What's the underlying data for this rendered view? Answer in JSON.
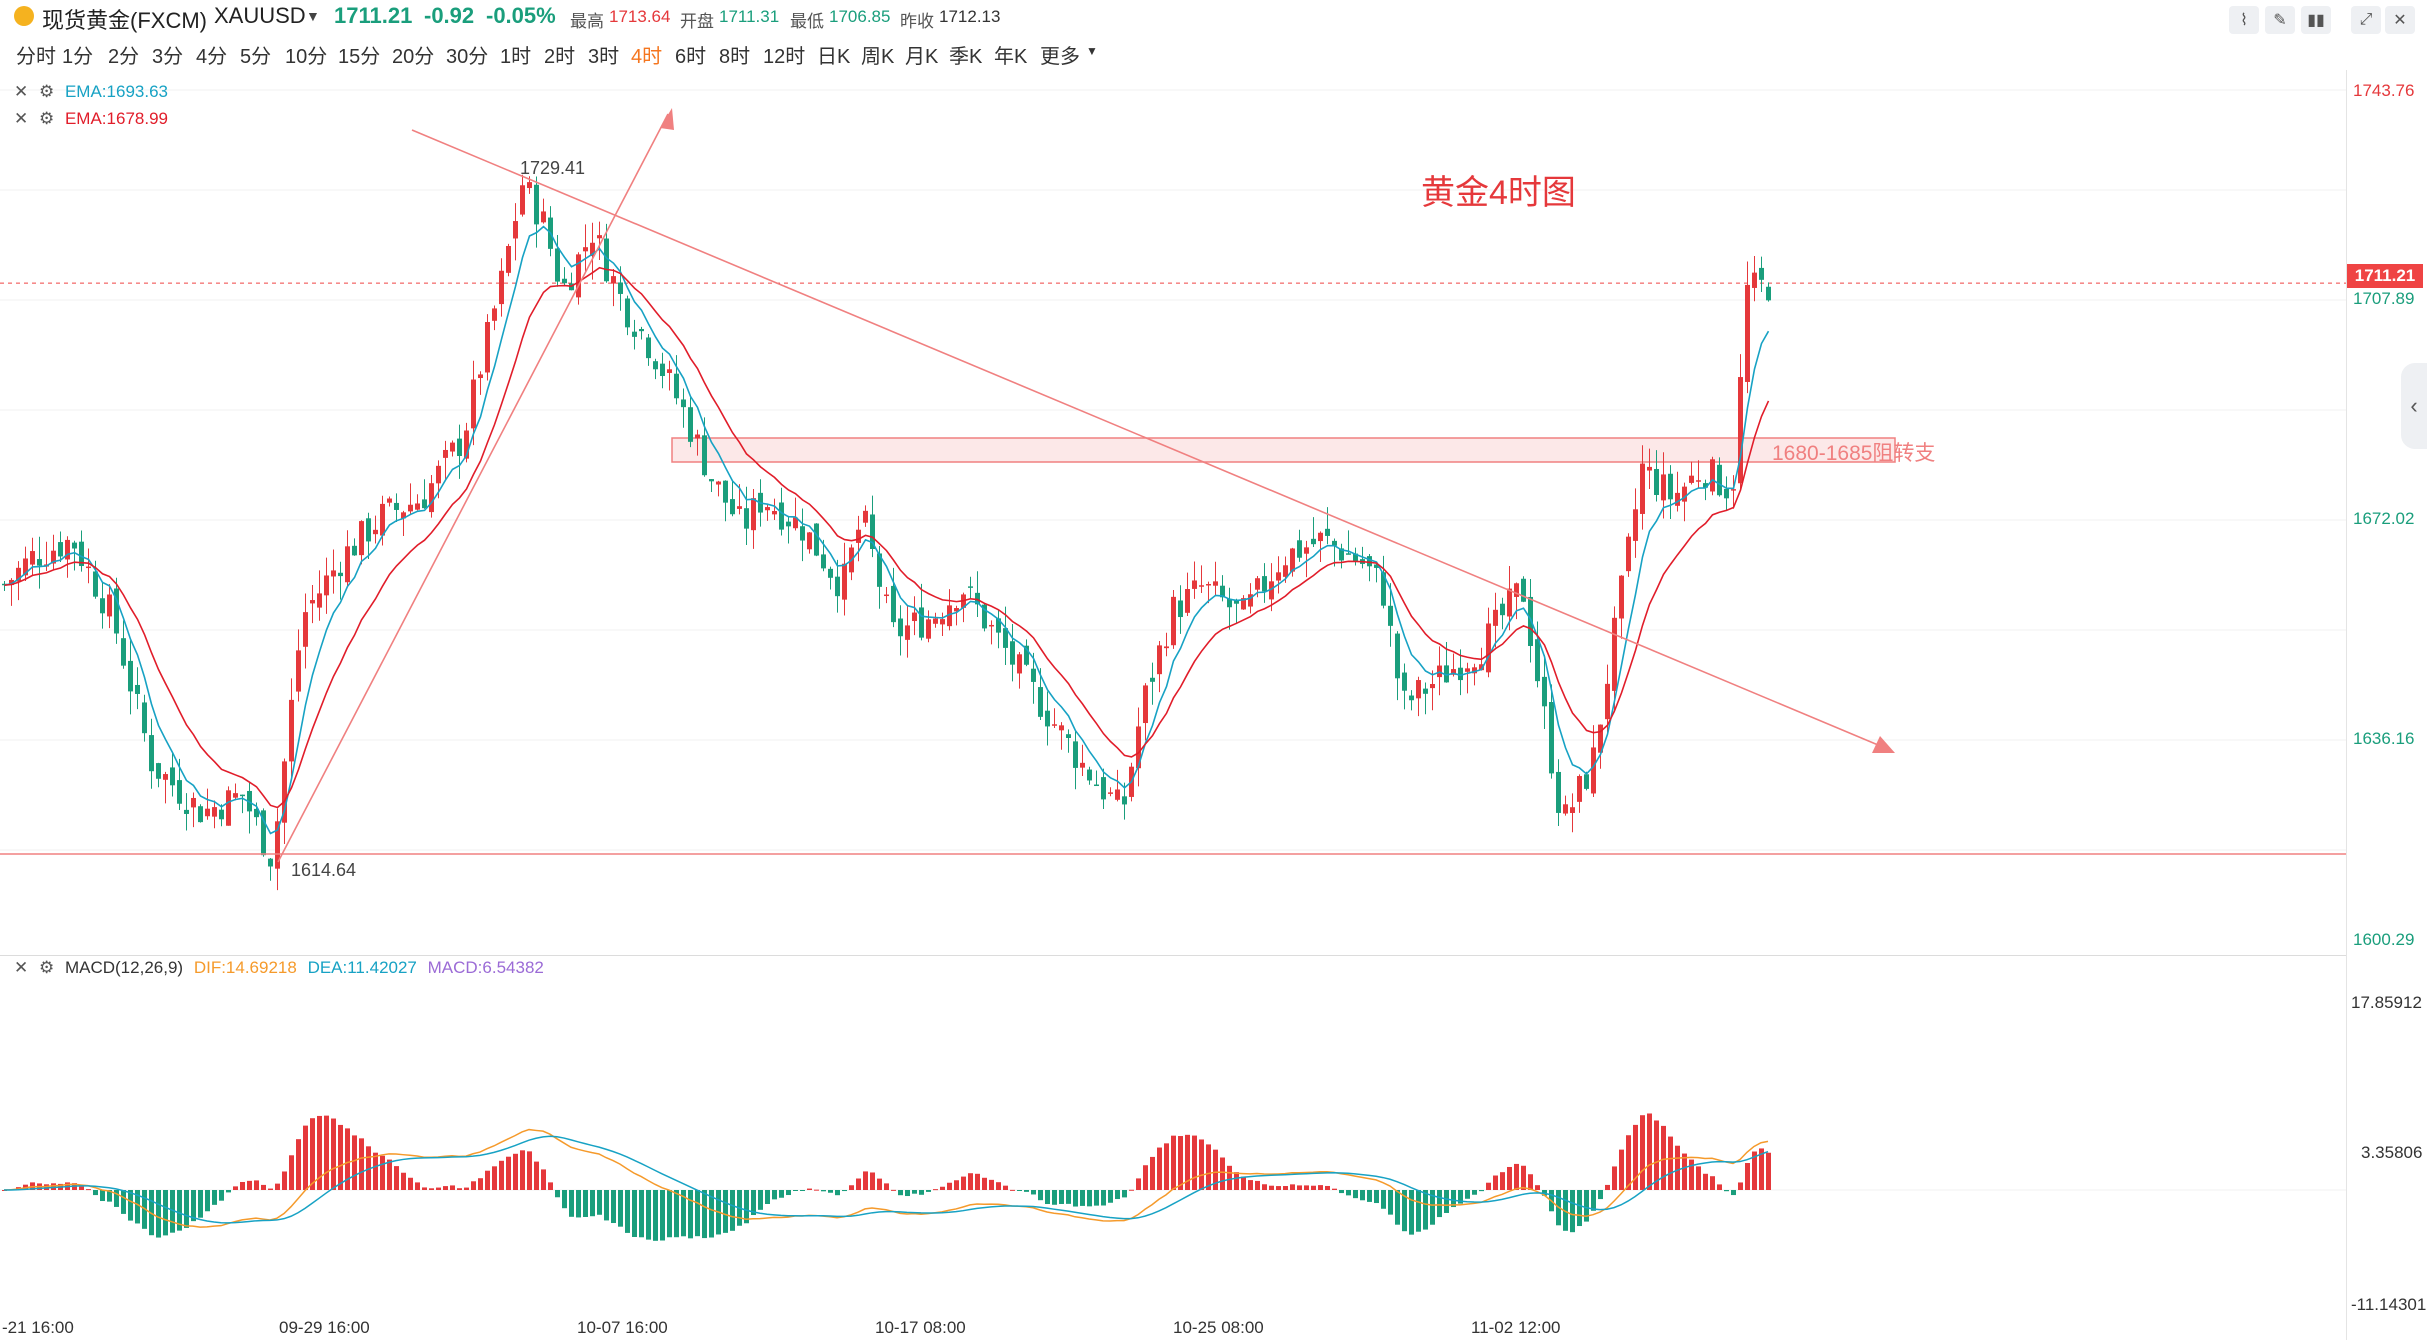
{
  "header": {
    "symbol_name": "现货黄金(FXCM)",
    "symbol_code": "XAUUSD",
    "price": "1711.21",
    "change": "-0.92",
    "change_pct": "-0.05%",
    "high_label": "最高",
    "high": "1713.64",
    "open_label": "开盘",
    "open": "1711.31",
    "low_label": "最低",
    "low": "1706.85",
    "prev_label": "昨收",
    "prev": "1712.13"
  },
  "timeframes": [
    "分时",
    "1分",
    "2分",
    "3分",
    "4分",
    "5分",
    "10分",
    "15分",
    "20分",
    "30分",
    "1时",
    "2时",
    "3时",
    "4时",
    "6时",
    "8时",
    "12时",
    "日K",
    "周K",
    "月K",
    "季K",
    "年K",
    "更多"
  ],
  "active_timeframe": "4时",
  "toolbar_icons": [
    "line-chart-icon",
    "pen-icon",
    "candle-settings-icon",
    "expand-icon",
    "close-icon"
  ],
  "main_chart": {
    "annotation_title": "黄金4时图",
    "zone_label": "1680-1685阻转支",
    "high_marker": "1729.41",
    "low_marker": "1614.64",
    "ema_fast": {
      "label": "EMA:1693.63",
      "color": "#17a2c4"
    },
    "ema_slow": {
      "label": "EMA:1678.99",
      "color": "#e11d2a"
    }
  },
  "price_axis": [
    "1743.76",
    "1707.89",
    "1672.02",
    "1636.16",
    "1600.29"
  ],
  "current_price_tag": "1711.21",
  "macd": {
    "label": "MACD(12,26,9)",
    "dif": "DIF:14.69218",
    "dea": "DEA:11.42027",
    "macd": "MACD:6.54382",
    "axis": [
      "17.85912",
      "3.35806",
      "-11.14301"
    ]
  },
  "time_axis": [
    "-21 16:00",
    "09-29 16:00",
    "10-07 16:00",
    "10-17 08:00",
    "10-25 08:00",
    "11-02 12:00"
  ],
  "colors": {
    "up": "#e5383b",
    "down": "#1a9e7c",
    "accent": "#f5761f",
    "trend": "#f08080"
  }
}
